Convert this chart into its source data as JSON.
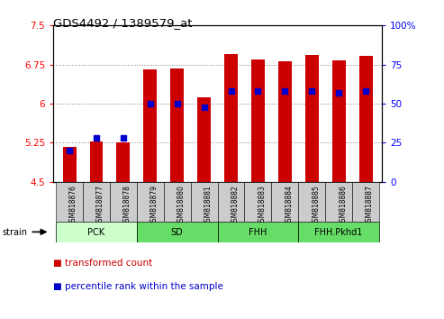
{
  "title": "GDS4492 / 1389579_at",
  "samples": [
    "GSM818876",
    "GSM818877",
    "GSM818878",
    "GSM818879",
    "GSM818880",
    "GSM818881",
    "GSM818882",
    "GSM818883",
    "GSM818884",
    "GSM818885",
    "GSM818886",
    "GSM818887"
  ],
  "transformed_count": [
    5.17,
    5.28,
    5.25,
    6.65,
    6.67,
    6.12,
    6.95,
    6.85,
    6.82,
    6.93,
    6.83,
    6.91
  ],
  "percentile_rank": [
    20,
    28,
    28,
    50,
    50,
    48,
    58,
    58,
    58,
    58,
    57,
    58
  ],
  "bar_color": "#cc0000",
  "dot_color": "#0000cc",
  "ymin": 4.5,
  "ymax": 7.5,
  "yticks_left": [
    4.5,
    5.25,
    6.0,
    6.75,
    7.5
  ],
  "yticks_left_labels": [
    "4.5",
    "5.25",
    "6",
    "6.75",
    "7.5"
  ],
  "yticks_right": [
    0,
    25,
    50,
    75,
    100
  ],
  "yticks_right_labels": [
    "0",
    "25",
    "50",
    "75",
    "100%"
  ],
  "groups": [
    {
      "name": "PCK",
      "start": 0,
      "end": 3,
      "light": true
    },
    {
      "name": "SD",
      "start": 3,
      "end": 6,
      "light": false
    },
    {
      "name": "FHH",
      "start": 6,
      "end": 9,
      "light": false
    },
    {
      "name": "FHH.Pkhd1",
      "start": 9,
      "end": 12,
      "light": false
    }
  ],
  "group_color_light": "#ccffcc",
  "group_color_dark": "#66dd66",
  "group_border_color": "#000000",
  "xtick_bg_color": "#cccccc",
  "legend_items": [
    {
      "label": "transformed count",
      "color": "#cc0000"
    },
    {
      "label": "percentile rank within the sample",
      "color": "#0000cc"
    }
  ],
  "strain_label": "strain",
  "bar_width": 0.5,
  "background_color": "#ffffff"
}
